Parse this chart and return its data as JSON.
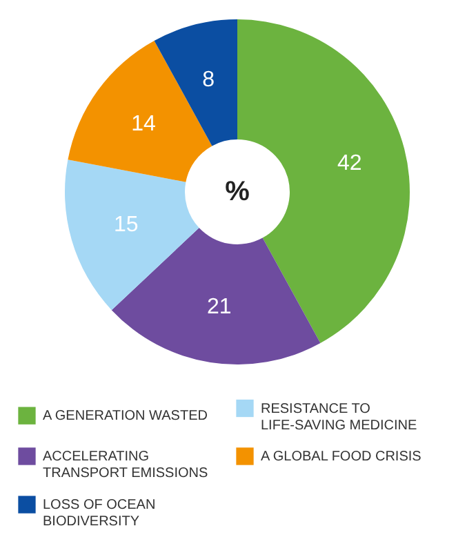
{
  "chart_data": {
    "type": "donut",
    "categories": [
      "A GENERATION WASTED",
      "ACCELERATING TRANSPORT EMISSIONS",
      "RESISTANCE TO LIFE-SAVING MEDICINE",
      "A GLOBAL FOOD CRISIS",
      "LOSS OF OCEAN BIODIVERSITY"
    ],
    "values": [
      42,
      21,
      15,
      14,
      8
    ],
    "colors": [
      "#6cb33f",
      "#6e4c9f",
      "#a5d8f5",
      "#f39200",
      "#0b4ea2"
    ],
    "data_labels": true,
    "legend": "bottom",
    "annotations": [
      "%"
    ]
  }
}
